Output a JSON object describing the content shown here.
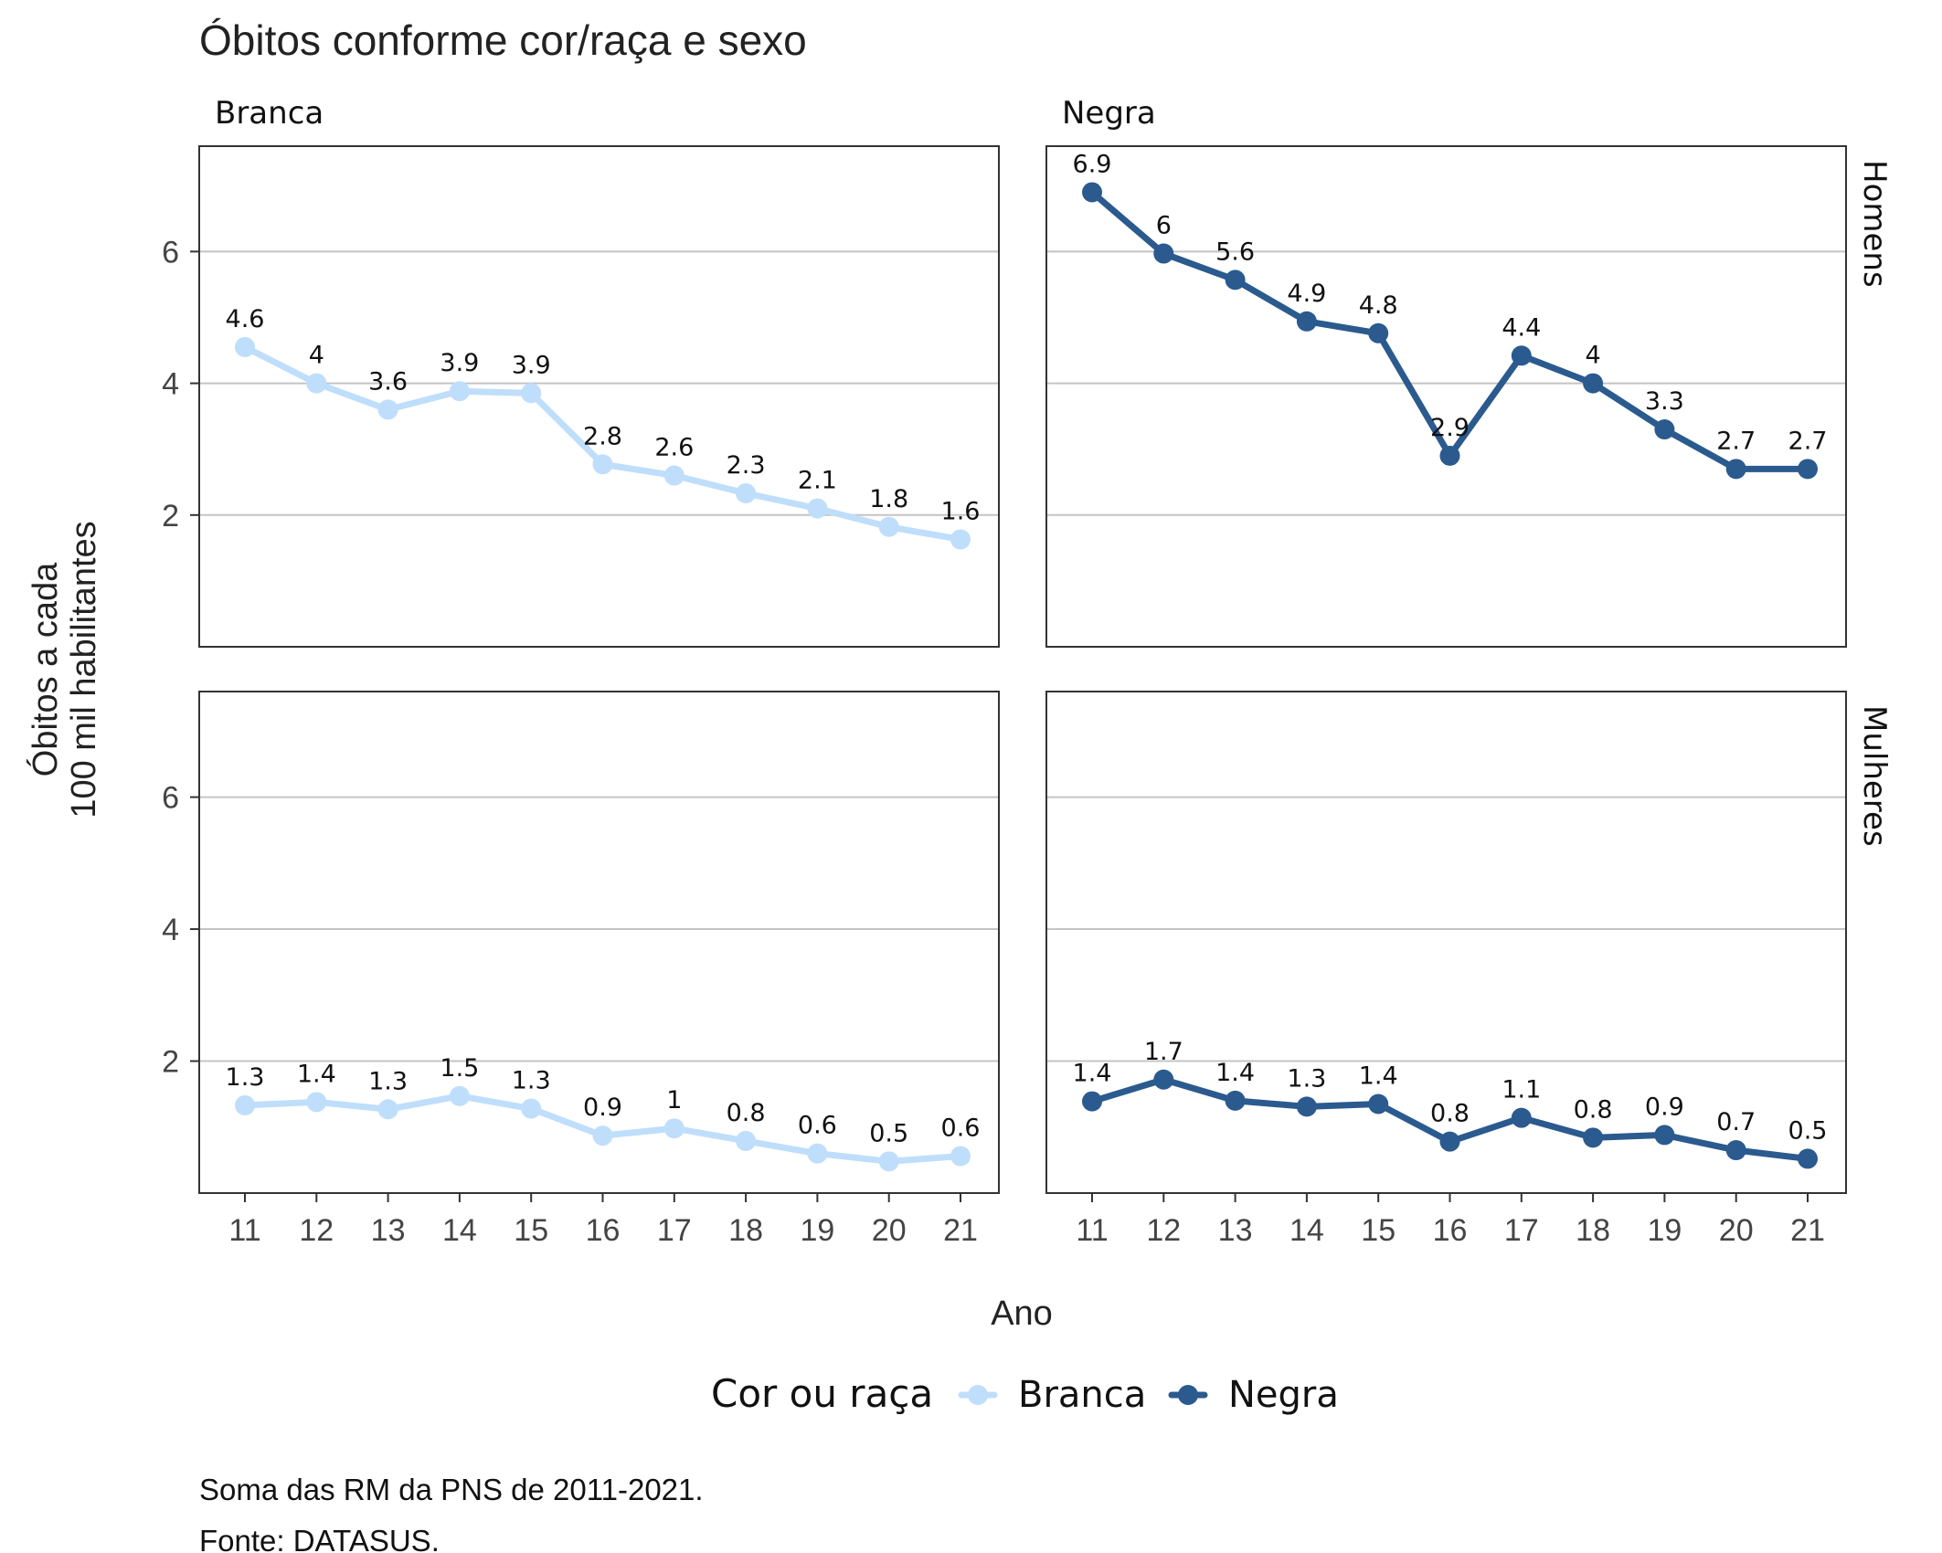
{
  "chart_data": {
    "type": "line",
    "title": "Óbitos conforme cor/raça e sexo",
    "xlabel": "Ano",
    "ylabel_lines": [
      "Óbitos a cada",
      "100 mil habilitantes"
    ],
    "x": [
      11,
      12,
      13,
      14,
      15,
      16,
      17,
      18,
      19,
      20,
      21
    ],
    "y_ticks": [
      2,
      4,
      6
    ],
    "ylim": [
      0,
      7.6
    ],
    "grid": "horizontal",
    "columns": [
      "Branca",
      "Negra"
    ],
    "rows": [
      "Homens",
      "Mulheres"
    ],
    "colors": {
      "Branca": "#bfdefb",
      "Negra": "#2b5a8e"
    },
    "panels": [
      {
        "column": "Branca",
        "row": "Homens",
        "series": "Branca",
        "values": [
          4.55,
          4.0,
          3.6,
          3.88,
          3.85,
          2.77,
          2.6,
          2.33,
          2.1,
          1.82,
          1.63
        ],
        "labels": [
          "4.6",
          "4",
          "3.6",
          "3.9",
          "3.9",
          "2.8",
          "2.6",
          "2.3",
          "2.1",
          "1.8",
          "1.6"
        ]
      },
      {
        "column": "Negra",
        "row": "Homens",
        "series": "Negra",
        "values": [
          6.9,
          5.97,
          5.57,
          4.94,
          4.76,
          2.9,
          4.42,
          4.0,
          3.3,
          2.7,
          2.7
        ],
        "labels": [
          "6.9",
          "6",
          "5.6",
          "4.9",
          "4.8",
          "2.9",
          "4.4",
          "4",
          "3.3",
          "2.7",
          "2.7"
        ]
      },
      {
        "column": "Branca",
        "row": "Mulheres",
        "series": "Branca",
        "values": [
          1.33,
          1.38,
          1.27,
          1.47,
          1.28,
          0.87,
          0.98,
          0.79,
          0.6,
          0.48,
          0.56
        ],
        "labels": [
          "1.3",
          "1.4",
          "1.3",
          "1.5",
          "1.3",
          "0.9",
          "1",
          "0.8",
          "0.6",
          "0.5",
          "0.6"
        ]
      },
      {
        "column": "Negra",
        "row": "Mulheres",
        "series": "Negra",
        "values": [
          1.39,
          1.72,
          1.4,
          1.31,
          1.35,
          0.78,
          1.14,
          0.84,
          0.88,
          0.65,
          0.52
        ],
        "labels": [
          "1.4",
          "1.7",
          "1.4",
          "1.3",
          "1.4",
          "0.8",
          "1.1",
          "0.8",
          "0.9",
          "0.7",
          "0.5"
        ]
      }
    ],
    "legend": {
      "title": "Cor ou raça",
      "position": "bottom",
      "items": [
        {
          "name": "Branca",
          "color": "#bfdefb"
        },
        {
          "name": "Negra",
          "color": "#2b5a8e"
        }
      ]
    },
    "captions": [
      "Soma das RM da PNS de 2011-2021.",
      "Fonte: DATASUS."
    ]
  }
}
